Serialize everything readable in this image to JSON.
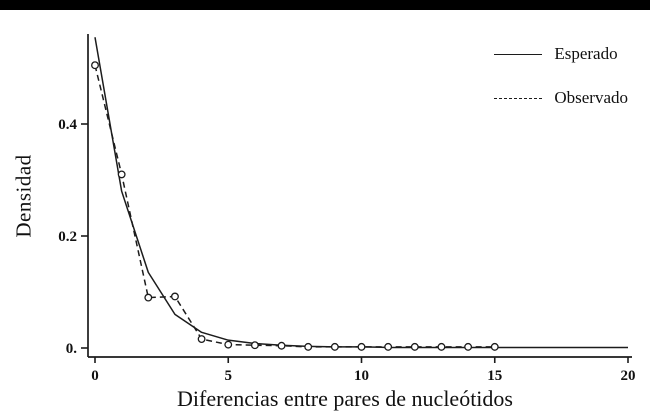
{
  "figure": {
    "top_bar_color": "#000000",
    "background": "#ffffff",
    "line_color": "#1c1c1c"
  },
  "chart_data": {
    "type": "line",
    "title": "",
    "xlabel": "Diferencias entre pares de nucleótidos",
    "ylabel": "Densidad",
    "xlim": [
      0,
      20
    ],
    "ylim": [
      0,
      0.56
    ],
    "grid": false,
    "legend_position": "top-right",
    "xticks": [
      {
        "value": 0,
        "label": "0"
      },
      {
        "value": 5,
        "label": "5"
      },
      {
        "value": 10,
        "label": "10"
      },
      {
        "value": 15,
        "label": "15"
      },
      {
        "value": 20,
        "label": "20"
      }
    ],
    "yticks": [
      {
        "value": 0,
        "label": "0."
      },
      {
        "value": 0.2,
        "label": "0.2"
      },
      {
        "value": 0.4,
        "label": "0.4"
      }
    ],
    "series": [
      {
        "name": "Esperado",
        "style": "solid",
        "marker": "none",
        "x": [
          0,
          1,
          2,
          3,
          4,
          5,
          6,
          7,
          8,
          9,
          10,
          11,
          12,
          13,
          14,
          15,
          16,
          17,
          18,
          19,
          20
        ],
        "y": [
          0.555,
          0.28,
          0.135,
          0.06,
          0.028,
          0.014,
          0.008,
          0.005,
          0.003,
          0.002,
          0.002,
          0.001,
          0.001,
          0.001,
          0.001,
          0.001,
          0.001,
          0.001,
          0.001,
          0.001,
          0.001
        ]
      },
      {
        "name": "Observado",
        "style": "dashed",
        "marker": "circle",
        "x": [
          0,
          1,
          2,
          3,
          4,
          5,
          6,
          7,
          8,
          9,
          10,
          11,
          12,
          13,
          14,
          15
        ],
        "y": [
          0.505,
          0.31,
          0.09,
          0.092,
          0.016,
          0.006,
          0.005,
          0.004,
          0.002,
          0.002,
          0.002,
          0.002,
          0.002,
          0.002,
          0.002,
          0.002
        ]
      }
    ]
  }
}
